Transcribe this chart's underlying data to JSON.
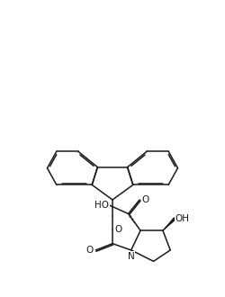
{
  "bg_color": "#ffffff",
  "line_color": "#1a1a1a",
  "line_width": 1.1,
  "font_size": 7.5,
  "figsize": [
    2.5,
    3.3
  ],
  "dpi": 100,
  "xlim": [
    -1,
    11
  ],
  "ylim": [
    0,
    13.2
  ]
}
